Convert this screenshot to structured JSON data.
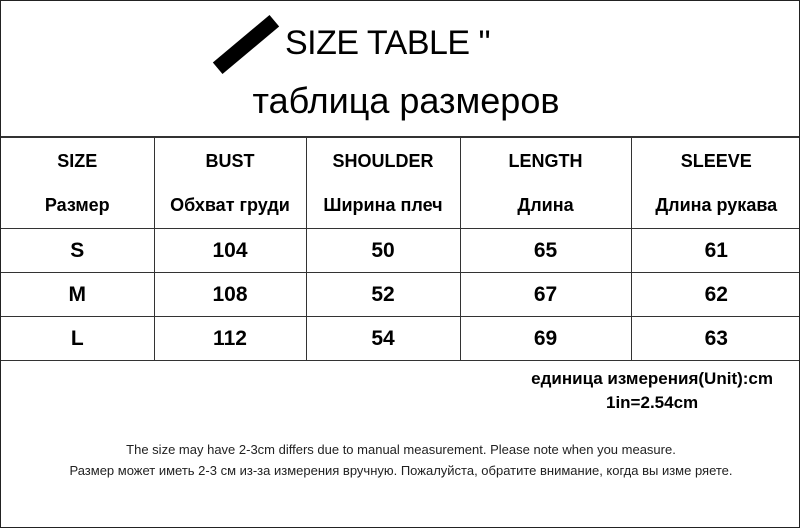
{
  "title": {
    "en": "SIZE TABLE \"",
    "ru": "таблица размеров"
  },
  "table": {
    "headers": [
      {
        "en": "SIZE",
        "ru": "Размер"
      },
      {
        "en": "BUST",
        "ru": "Обхват груди"
      },
      {
        "en": "SHOULDER",
        "ru": "Ширина плеч"
      },
      {
        "en": "LENGTH",
        "ru": "Длина"
      },
      {
        "en": "SLEEVE",
        "ru": "Длина рукава"
      }
    ],
    "rows": [
      [
        "S",
        "104",
        "50",
        "65",
        "61"
      ],
      [
        "M",
        "108",
        "52",
        "67",
        "62"
      ],
      [
        "L",
        "112",
        "54",
        "69",
        "63"
      ]
    ]
  },
  "unit": {
    "line1": "единица измерения(Unit):cm",
    "line2": "1in=2.54cm"
  },
  "note": {
    "en": "The size may have 2-3cm differs due to manual measurement. Please note when you measure.",
    "ru": "Размер может иметь 2-3 см из-за измерения вручную. Пожалуйста, обратите внимание, когда вы изме ряете."
  }
}
